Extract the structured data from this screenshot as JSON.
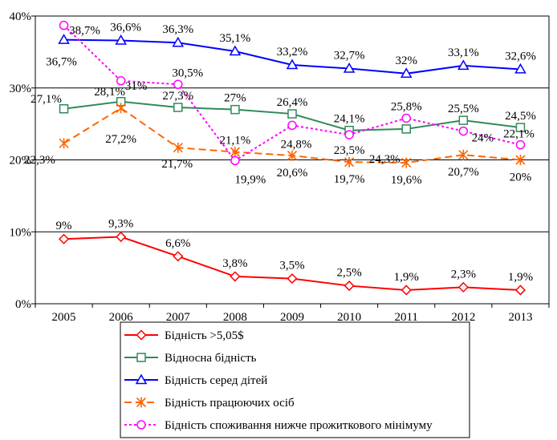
{
  "chart_data": {
    "type": "line",
    "categories": [
      "2005",
      "2006",
      "2007",
      "2008",
      "2009",
      "2010",
      "2011",
      "2012",
      "2013"
    ],
    "ylim": [
      0,
      40
    ],
    "yticks": [
      {
        "value": 0,
        "label": "0%"
      },
      {
        "value": 10,
        "label": "10%"
      },
      {
        "value": 20,
        "label": "20%"
      },
      {
        "value": 30,
        "label": "30%"
      },
      {
        "value": 40,
        "label": "40%"
      }
    ],
    "grid": "horizontal",
    "legend_position": "bottom",
    "series": [
      {
        "name": "Бідність >5,05$",
        "color": "#ff0000",
        "marker": "diamond",
        "dash": "solid",
        "values": [
          9.0,
          9.3,
          6.6,
          3.8,
          3.5,
          2.5,
          1.9,
          2.3,
          1.9
        ],
        "labels": [
          "9%",
          "9,3%",
          "6,6%",
          "3,8%",
          "3,5%",
          "2,5%",
          "1,9%",
          "2,3%",
          "1,9%"
        ]
      },
      {
        "name": "Відносна бідність",
        "color": "#2e8b57",
        "marker": "square",
        "dash": "solid",
        "values": [
          27.1,
          28.1,
          27.3,
          27.0,
          26.4,
          24.1,
          24.3,
          25.5,
          24.5
        ],
        "labels": [
          "27,1%",
          "28,1%",
          "27,3%",
          "27%",
          "26,4%",
          "24,1%",
          "24,3%",
          "25,5%",
          "24,5%"
        ]
      },
      {
        "name": "Бідність серед дітей",
        "color": "#0000ff",
        "marker": "triangle",
        "dash": "solid",
        "values": [
          36.7,
          36.6,
          36.3,
          35.1,
          33.2,
          32.7,
          32.0,
          33.1,
          32.6
        ],
        "labels": [
          "36,7%",
          "36,6%",
          "36,3%",
          "35,1%",
          "33,2%",
          "32,7%",
          "32%",
          "33,1%",
          "32,6%"
        ]
      },
      {
        "name": "Бідність працюючих осіб",
        "color": "#ff6600",
        "marker": "star",
        "dash": "dashed",
        "values": [
          22.3,
          27.2,
          21.7,
          21.1,
          20.6,
          19.7,
          19.6,
          20.7,
          20.0
        ],
        "labels": [
          "22,3%",
          "27,2%",
          "21,7%",
          "21,1%",
          "20,6%",
          "19,7%",
          "19,6%",
          "20,7%",
          "20%"
        ]
      },
      {
        "name": "Бідність споживання нижче прожиткового мінімуму",
        "color": "#ff00ff",
        "marker": "circle",
        "dash": "dotted",
        "values": [
          38.7,
          31.0,
          30.5,
          19.9,
          24.8,
          23.5,
          25.8,
          24.0,
          22.1
        ],
        "labels": [
          "38,7%",
          "31%",
          "30,5%",
          "19,9%",
          "24,8%",
          "23,5%",
          "25,8%",
          "24%",
          "22,1%"
        ]
      }
    ]
  }
}
